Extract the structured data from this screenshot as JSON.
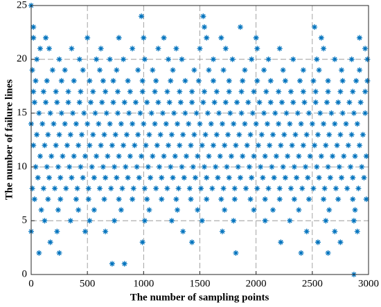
{
  "chart_data": {
    "type": "scatter",
    "xlabel": "The number of sampling points",
    "ylabel": "The number of failure lines",
    "color": "#0072bd",
    "grid": true,
    "xlim": [
      0,
      3000
    ],
    "xticks": [
      0,
      500,
      1000,
      1500,
      2000,
      2500,
      3000
    ],
    "ylim": [
      0,
      25
    ],
    "yticks": [
      0,
      5,
      10,
      15,
      20,
      25
    ],
    "x": [
      0,
      980,
      1530,
      20,
      1540,
      1860,
      2520,
      20,
      130,
      500,
      780,
      1000,
      1180,
      1560,
      1690,
      2000,
      2580,
      2920,
      80,
      160,
      360,
      620,
      900,
      1130,
      1290,
      1500,
      1730,
      2010,
      2210,
      2600,
      2970,
      50,
      250,
      430,
      580,
      700,
      820,
      1010,
      1220,
      1340,
      1620,
      1790,
      1960,
      2110,
      2330,
      2540,
      2700,
      2850,
      2990,
      10,
      190,
      300,
      460,
      610,
      760,
      950,
      1080,
      1260,
      1450,
      1580,
      1710,
      1900,
      2070,
      2240,
      2420,
      2560,
      2760,
      2920,
      40,
      140,
      270,
      380,
      520,
      640,
      730,
      860,
      990,
      1110,
      1240,
      1370,
      1490,
      1620,
      1760,
      1880,
      2010,
      2130,
      2260,
      2390,
      2510,
      2640,
      2770,
      2890,
      2990,
      20,
      110,
      220,
      330,
      440,
      550,
      660,
      770,
      880,
      990,
      1100,
      1210,
      1320,
      1430,
      1540,
      1650,
      1760,
      1870,
      1980,
      2090,
      2200,
      2310,
      2420,
      2530,
      2640,
      2750,
      2860,
      2970,
      30,
      130,
      230,
      330,
      430,
      530,
      630,
      730,
      830,
      930,
      1030,
      1130,
      1230,
      1330,
      1430,
      1530,
      1630,
      1730,
      1830,
      1930,
      2030,
      2130,
      2230,
      2330,
      2430,
      2530,
      2630,
      2730,
      2830,
      2930,
      70,
      170,
      270,
      370,
      470,
      570,
      670,
      770,
      870,
      970,
      1070,
      1170,
      1270,
      1370,
      1470,
      1570,
      1670,
      1770,
      1870,
      1970,
      2070,
      2170,
      2270,
      2370,
      2470,
      2570,
      2670,
      2770,
      2870,
      2970,
      0,
      100,
      200,
      300,
      400,
      500,
      600,
      700,
      800,
      900,
      1000,
      1100,
      1200,
      1300,
      1400,
      1500,
      1600,
      1700,
      1800,
      1900,
      2000,
      2100,
      2200,
      2300,
      2400,
      2500,
      2600,
      2700,
      2800,
      2900,
      50,
      150,
      250,
      350,
      450,
      550,
      650,
      750,
      850,
      950,
      1050,
      1150,
      1250,
      1350,
      1450,
      1550,
      1650,
      1750,
      1850,
      1950,
      2050,
      2150,
      2250,
      2350,
      2450,
      2550,
      2650,
      2750,
      2850,
      2950,
      20,
      120,
      220,
      320,
      420,
      520,
      620,
      720,
      820,
      920,
      1020,
      1120,
      1220,
      1320,
      1420,
      1520,
      1620,
      1720,
      1820,
      1920,
      2020,
      2120,
      2220,
      2320,
      2420,
      2520,
      2620,
      2720,
      2820,
      2920,
      80,
      180,
      280,
      380,
      480,
      580,
      680,
      780,
      880,
      980,
      1080,
      1180,
      1280,
      1380,
      1480,
      1580,
      1680,
      1780,
      1880,
      1980,
      2080,
      2180,
      2280,
      2380,
      2480,
      2580,
      2680,
      2780,
      2880,
      2980,
      40,
      140,
      240,
      340,
      440,
      540,
      640,
      740,
      840,
      940,
      1040,
      1140,
      1240,
      1340,
      1440,
      1540,
      1640,
      1740,
      1840,
      1940,
      2040,
      2140,
      2240,
      2340,
      2440,
      2540,
      2640,
      2740,
      2840,
      2940,
      60,
      160,
      260,
      360,
      460,
      560,
      660,
      760,
      860,
      960,
      1060,
      1160,
      1260,
      1360,
      1460,
      1560,
      1660,
      1760,
      1860,
      1960,
      2060,
      2160,
      2260,
      2360,
      2460,
      2560,
      2660,
      2760,
      2860,
      2960,
      10,
      110,
      210,
      310,
      410,
      510,
      610,
      710,
      810,
      910,
      1010,
      1110,
      1210,
      1310,
      1410,
      1510,
      1610,
      1710,
      1810,
      1910,
      2010,
      2110,
      2210,
      2310,
      2410,
      2510,
      2610,
      2710,
      2810,
      2910,
      30,
      150,
      260,
      400,
      510,
      650,
      780,
      900,
      1030,
      1160,
      1290,
      1420,
      1560,
      1690,
      1810,
      1950,
      2080,
      2210,
      2340,
      2470,
      2600,
      2730,
      2860,
      2980,
      90,
      240,
      420,
      560,
      800,
      1050,
      1300,
      1480,
      1720,
      1980,
      2150,
      2380,
      2650,
      2880,
      120,
      350,
      520,
      740,
      1010,
      1250,
      1520,
      1800,
      2080,
      2300,
      2620,
      2870,
      0,
      230,
      480,
      660,
      1350,
      1700,
      2450,
      2700,
      2900,
      170,
      990,
      1430,
      2220,
      2550,
      2750,
      70,
      250,
      1820,
      2400,
      2640,
      720,
      830,
      2870
    ],
    "y": [
      25,
      24,
      24,
      23,
      23,
      23,
      23,
      22,
      22,
      22,
      22,
      22,
      22,
      22,
      22,
      22,
      22,
      22,
      21,
      21,
      21,
      21,
      21,
      21,
      21,
      21,
      21,
      21,
      21,
      21,
      21,
      20,
      20,
      20,
      20,
      20,
      20,
      20,
      20,
      20,
      20,
      20,
      20,
      20,
      20,
      20,
      20,
      20,
      20,
      19,
      19,
      19,
      19,
      19,
      19,
      19,
      19,
      19,
      19,
      19,
      19,
      19,
      19,
      19,
      19,
      19,
      19,
      19,
      18,
      18,
      18,
      18,
      18,
      18,
      18,
      18,
      18,
      18,
      18,
      18,
      18,
      18,
      18,
      18,
      18,
      18,
      18,
      18,
      18,
      18,
      18,
      18,
      18,
      17,
      17,
      17,
      17,
      17,
      17,
      17,
      17,
      17,
      17,
      17,
      17,
      17,
      17,
      17,
      17,
      17,
      17,
      17,
      17,
      17,
      17,
      17,
      17,
      17,
      17,
      17,
      17,
      16,
      16,
      16,
      16,
      16,
      16,
      16,
      16,
      16,
      16,
      16,
      16,
      16,
      16,
      16,
      16,
      16,
      16,
      16,
      16,
      16,
      16,
      16,
      16,
      16,
      16,
      16,
      16,
      16,
      16,
      15,
      15,
      15,
      15,
      15,
      15,
      15,
      15,
      15,
      15,
      15,
      15,
      15,
      15,
      15,
      15,
      15,
      15,
      15,
      15,
      15,
      15,
      15,
      15,
      15,
      15,
      15,
      15,
      15,
      15,
      14,
      14,
      14,
      14,
      14,
      14,
      14,
      14,
      14,
      14,
      14,
      14,
      14,
      14,
      14,
      14,
      14,
      14,
      14,
      14,
      14,
      14,
      14,
      14,
      14,
      14,
      14,
      14,
      14,
      14,
      13,
      13,
      13,
      13,
      13,
      13,
      13,
      13,
      13,
      13,
      13,
      13,
      13,
      13,
      13,
      13,
      13,
      13,
      13,
      13,
      13,
      13,
      13,
      13,
      13,
      13,
      13,
      13,
      13,
      13,
      12,
      12,
      12,
      12,
      12,
      12,
      12,
      12,
      12,
      12,
      12,
      12,
      12,
      12,
      12,
      12,
      12,
      12,
      12,
      12,
      12,
      12,
      12,
      12,
      12,
      12,
      12,
      12,
      12,
      12,
      11,
      11,
      11,
      11,
      11,
      11,
      11,
      11,
      11,
      11,
      11,
      11,
      11,
      11,
      11,
      11,
      11,
      11,
      11,
      11,
      11,
      11,
      11,
      11,
      11,
      11,
      11,
      11,
      11,
      11,
      10,
      10,
      10,
      10,
      10,
      10,
      10,
      10,
      10,
      10,
      10,
      10,
      10,
      10,
      10,
      10,
      10,
      10,
      10,
      10,
      10,
      10,
      10,
      10,
      10,
      10,
      10,
      10,
      10,
      10,
      9,
      9,
      9,
      9,
      9,
      9,
      9,
      9,
      9,
      9,
      9,
      9,
      9,
      9,
      9,
      9,
      9,
      9,
      9,
      9,
      9,
      9,
      9,
      9,
      9,
      9,
      9,
      9,
      9,
      9,
      8,
      8,
      8,
      8,
      8,
      8,
      8,
      8,
      8,
      8,
      8,
      8,
      8,
      8,
      8,
      8,
      8,
      8,
      8,
      8,
      8,
      8,
      8,
      8,
      8,
      8,
      8,
      8,
      8,
      8,
      7,
      7,
      7,
      7,
      7,
      7,
      7,
      7,
      7,
      7,
      7,
      7,
      7,
      7,
      7,
      7,
      7,
      7,
      7,
      7,
      7,
      7,
      7,
      7,
      6,
      6,
      6,
      6,
      6,
      6,
      6,
      6,
      6,
      6,
      6,
      6,
      6,
      6,
      5,
      5,
      5,
      5,
      5,
      5,
      5,
      5,
      5,
      5,
      5,
      5,
      4,
      4,
      4,
      4,
      4,
      4,
      4,
      4,
      4,
      3,
      3,
      3,
      3,
      3,
      3,
      2,
      2,
      2,
      2,
      2,
      1,
      1,
      0
    ]
  }
}
